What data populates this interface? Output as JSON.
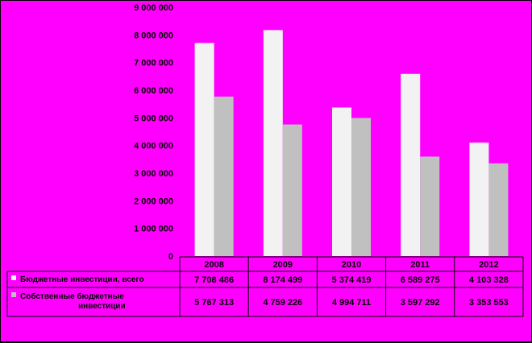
{
  "chart_data": {
    "type": "bar",
    "categories": [
      "2008",
      "2009",
      "2010",
      "2011",
      "2012"
    ],
    "series": [
      {
        "name": "Бюджетные инвестиции, всего",
        "values": [
          7708486,
          8174499,
          5374419,
          6589275,
          4103328
        ],
        "value_labels": [
          "7 708 486",
          "8 174 499",
          "5 374 419",
          "6 589 275",
          "4 103 328"
        ],
        "color": "#f2f2f2"
      },
      {
        "name": "Собственные бюджетные инвестиции",
        "values": [
          5767313,
          4759226,
          4994711,
          3597292,
          3353553
        ],
        "value_labels": [
          "5 767 313",
          "4 759 226",
          "4 994 711",
          "3 597 292",
          "3 353 553"
        ],
        "color": "#c0c0c0",
        "label_lines": [
          "Собственные бюджетные",
          "инвестиции"
        ]
      }
    ],
    "ylim": [
      0,
      9000000
    ],
    "yticks": [
      0,
      1000000,
      2000000,
      3000000,
      4000000,
      5000000,
      6000000,
      7000000,
      8000000,
      9000000
    ],
    "ytick_labels": [
      "0",
      "1 000 000",
      "2 000 000",
      "3 000 000",
      "4 000 000",
      "5 000 000",
      "6 000 000",
      "7 000 000",
      "8 000 000",
      "9 000 000"
    ],
    "grid": false,
    "legend": "data-table",
    "background": "#ff00ff"
  }
}
